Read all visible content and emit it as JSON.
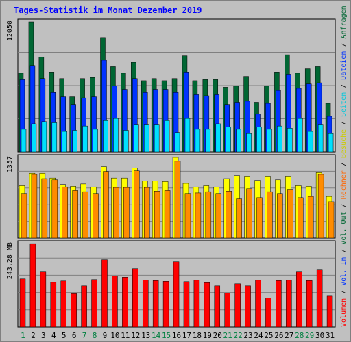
{
  "title": "Tages-Statistik im Monat Dezember 2019",
  "colors": {
    "background": "#c0c0c0",
    "title": "#0000ff",
    "panel": "#c0c0c0",
    "grid": "#808080",
    "hits": "#006633",
    "files": "#0033ff",
    "pages": "#00e0ff",
    "visits": "#ffff00",
    "sites": "#ff8c00",
    "volume": "#ff0000",
    "weekday_label": "#000000",
    "weekend_label": "#008040"
  },
  "legend": {
    "top": [
      {
        "text": "Anfragen",
        "color": "#006633"
      },
      {
        "text": "Dateien",
        "color": "#0033ff"
      },
      {
        "text": "Seiten",
        "color": "#00c8dc"
      },
      {
        "text": "Besuche",
        "color": "#cccc00"
      },
      {
        "text": "Rechner",
        "color": "#ff6600"
      },
      {
        "text": "Vol. Out",
        "color": "#006633"
      },
      {
        "text": "Vol. In",
        "color": "#0033ff"
      },
      {
        "text": "Volumen",
        "color": "#ff0000"
      }
    ],
    "separator": " / "
  },
  "chart_data": [
    {
      "type": "bar",
      "panel": "top",
      "ymax_label": "12050",
      "ylim": [
        0,
        12050
      ],
      "categories": [
        "1",
        "2",
        "3",
        "4",
        "5",
        "6",
        "7",
        "8",
        "9",
        "10",
        "11",
        "12",
        "13",
        "14",
        "15",
        "16",
        "17",
        "18",
        "19",
        "20",
        "21",
        "22",
        "23",
        "24",
        "25",
        "26",
        "27",
        "28",
        "29",
        "30",
        "31"
      ],
      "weekend": [
        "1",
        "7",
        "8",
        "14",
        "15",
        "21",
        "22",
        "28",
        "29"
      ],
      "series": [
        {
          "name": "Anfragen",
          "values": [
            7300,
            12050,
            8800,
            7400,
            6800,
            5100,
            6800,
            6900,
            10600,
            7900,
            7300,
            8300,
            6600,
            6800,
            6600,
            6800,
            8900,
            6600,
            6700,
            6700,
            6000,
            6100,
            7000,
            4600,
            6100,
            7400,
            9000,
            7300,
            7700,
            7900,
            4500
          ]
        },
        {
          "name": "Dateien",
          "values": [
            6700,
            8000,
            6800,
            5500,
            5100,
            4400,
            5000,
            5100,
            8500,
            6100,
            5800,
            6800,
            5500,
            5800,
            5800,
            5500,
            7400,
            5300,
            5200,
            5300,
            4400,
            4600,
            4700,
            3500,
            4500,
            5700,
            7200,
            5900,
            6300,
            6400,
            3300
          ]
        },
        {
          "name": "Seiten",
          "values": [
            2100,
            2600,
            2800,
            2700,
            1900,
            2000,
            2400,
            2100,
            2900,
            3100,
            2000,
            2500,
            2500,
            2500,
            2900,
            1800,
            3100,
            2100,
            2100,
            2600,
            2300,
            2100,
            1700,
            2300,
            2100,
            2400,
            2200,
            3100,
            1900,
            2500,
            1700
          ]
        }
      ]
    },
    {
      "type": "bar",
      "panel": "middle",
      "ymax_label": "1357",
      "ylim": [
        0,
        1357
      ],
      "categories": [
        "1",
        "2",
        "3",
        "4",
        "5",
        "6",
        "7",
        "8",
        "9",
        "10",
        "11",
        "12",
        "13",
        "14",
        "15",
        "16",
        "17",
        "18",
        "19",
        "20",
        "21",
        "22",
        "23",
        "24",
        "25",
        "26",
        "27",
        "28",
        "29",
        "30",
        "31"
      ],
      "series": [
        {
          "name": "Besuche",
          "values": [
            880,
            1090,
            1090,
            1010,
            900,
            870,
            910,
            860,
            1200,
            1010,
            1010,
            1180,
            960,
            960,
            950,
            1357,
            920,
            860,
            880,
            860,
            1000,
            1050,
            1030,
            970,
            1030,
            980,
            1030,
            880,
            870,
            1100,
            700
          ]
        },
        {
          "name": "Rechner",
          "values": [
            750,
            1070,
            1000,
            980,
            860,
            800,
            780,
            750,
            1120,
            850,
            850,
            1130,
            850,
            790,
            800,
            1290,
            750,
            760,
            780,
            750,
            790,
            660,
            830,
            680,
            780,
            750,
            810,
            680,
            700,
            1070,
            610
          ]
        }
      ]
    },
    {
      "type": "bar",
      "panel": "bottom",
      "ymax_label": "243.28 MB",
      "ylim": [
        0,
        243.28
      ],
      "categories": [
        "1",
        "2",
        "3",
        "4",
        "5",
        "6",
        "7",
        "8",
        "9",
        "10",
        "11",
        "12",
        "13",
        "14",
        "15",
        "16",
        "17",
        "18",
        "19",
        "20",
        "21",
        "22",
        "23",
        "24",
        "25",
        "26",
        "27",
        "28",
        "29",
        "30",
        "31"
      ],
      "series": [
        {
          "name": "Volumen",
          "values": [
            140,
            243,
            162,
            130,
            134,
            97,
            120,
            138,
            196,
            148,
            145,
            170,
            137,
            135,
            133,
            190,
            132,
            136,
            129,
            120,
            99,
            126,
            120,
            136,
            85,
            135,
            136,
            162,
            135,
            166,
            90
          ]
        }
      ]
    }
  ]
}
